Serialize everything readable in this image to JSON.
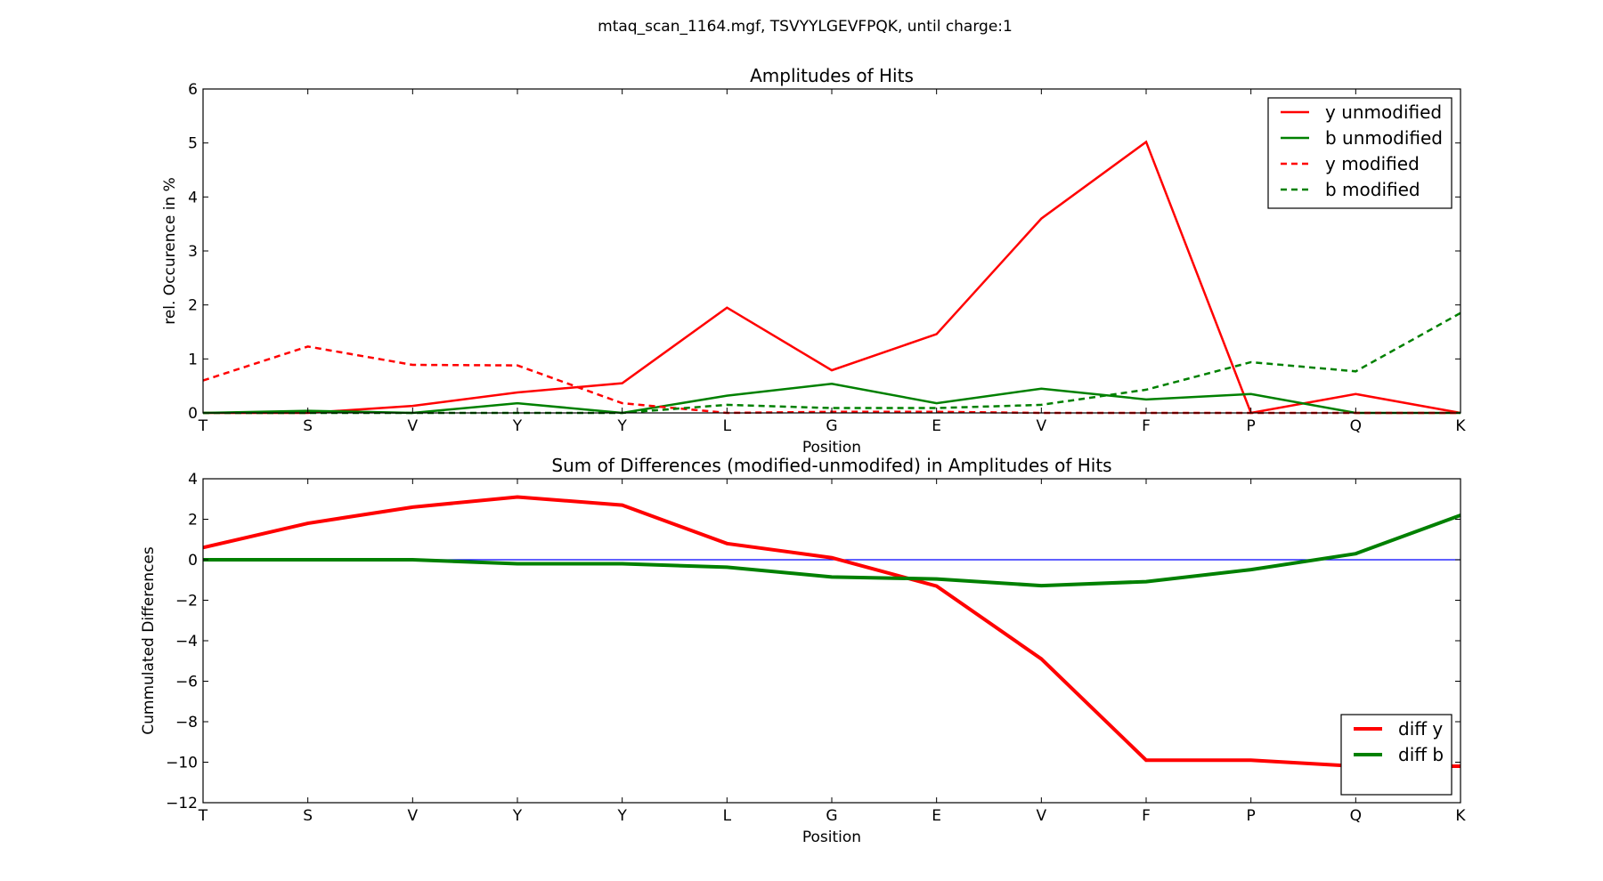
{
  "figure": {
    "suptitle": "mtaq_scan_1164.mgf, TSVYYLGEVFPQK, until charge:1"
  },
  "chart_data": [
    {
      "type": "line",
      "title": "Amplitudes of Hits",
      "xlabel": "Position",
      "ylabel": "rel. Occurence in %",
      "categories": [
        "T",
        "S",
        "V",
        "Y",
        "Y",
        "L",
        "G",
        "E",
        "V",
        "F",
        "P",
        "Q",
        "K"
      ],
      "ylim": [
        0,
        6
      ],
      "yticks": [
        0,
        1,
        2,
        3,
        4,
        5,
        6
      ],
      "ytick_labels": [
        "0",
        "1",
        "2",
        "3",
        "4",
        "5",
        "6"
      ],
      "grid": false,
      "legend_position": "top-right",
      "series": [
        {
          "name": "y unmodified",
          "color": "#ff0000",
          "style": "solid",
          "values": [
            0,
            0,
            0.13,
            0.38,
            0.55,
            1.95,
            0.79,
            1.46,
            3.6,
            5.02,
            0,
            0.35,
            0
          ]
        },
        {
          "name": "b unmodified",
          "color": "#008000",
          "style": "solid",
          "values": [
            0,
            0.04,
            0,
            0.18,
            0,
            0.32,
            0.54,
            0.18,
            0.45,
            0.25,
            0.35,
            0,
            0
          ]
        },
        {
          "name": "y modified",
          "color": "#ff0000",
          "style": "dashed",
          "values": [
            0.6,
            1.23,
            0.89,
            0.88,
            0.18,
            0,
            0.02,
            0.02,
            0,
            0,
            0,
            0,
            0
          ]
        },
        {
          "name": "b modified",
          "color": "#008000",
          "style": "dashed",
          "values": [
            0,
            0,
            0,
            0,
            0,
            0.15,
            0.09,
            0.09,
            0.15,
            0.43,
            0.94,
            0.77,
            1.85
          ]
        }
      ]
    },
    {
      "type": "line",
      "title": "Sum of Differences (modified-unmodifed) in Amplitudes of Hits",
      "xlabel": "Position",
      "ylabel": "Cummulated Differences",
      "categories": [
        "T",
        "S",
        "V",
        "Y",
        "Y",
        "L",
        "G",
        "E",
        "V",
        "F",
        "P",
        "Q",
        "K"
      ],
      "ylim": [
        -12,
        4
      ],
      "yticks": [
        -12,
        -10,
        -8,
        -6,
        -4,
        -2,
        0,
        2,
        4
      ],
      "ytick_labels": [
        "−12",
        "−10",
        "−8",
        "−6",
        "−4",
        "−2",
        "0",
        "2",
        "4"
      ],
      "grid": false,
      "legend_position": "bottom-right",
      "reference_line": {
        "value": 0,
        "color": "#0000ff"
      },
      "series": [
        {
          "name": "diff y",
          "color": "#ff0000",
          "style": "solid",
          "values": [
            0.6,
            1.8,
            2.6,
            3.1,
            2.7,
            0.8,
            0.1,
            -1.3,
            -4.9,
            -9.9,
            -9.9,
            -10.2,
            -10.2
          ]
        },
        {
          "name": "diff b",
          "color": "#008000",
          "style": "solid",
          "values": [
            0,
            0,
            0,
            -0.2,
            -0.2,
            -0.37,
            -0.85,
            -0.95,
            -1.28,
            -1.08,
            -0.49,
            0.3,
            2.2
          ]
        }
      ]
    }
  ]
}
